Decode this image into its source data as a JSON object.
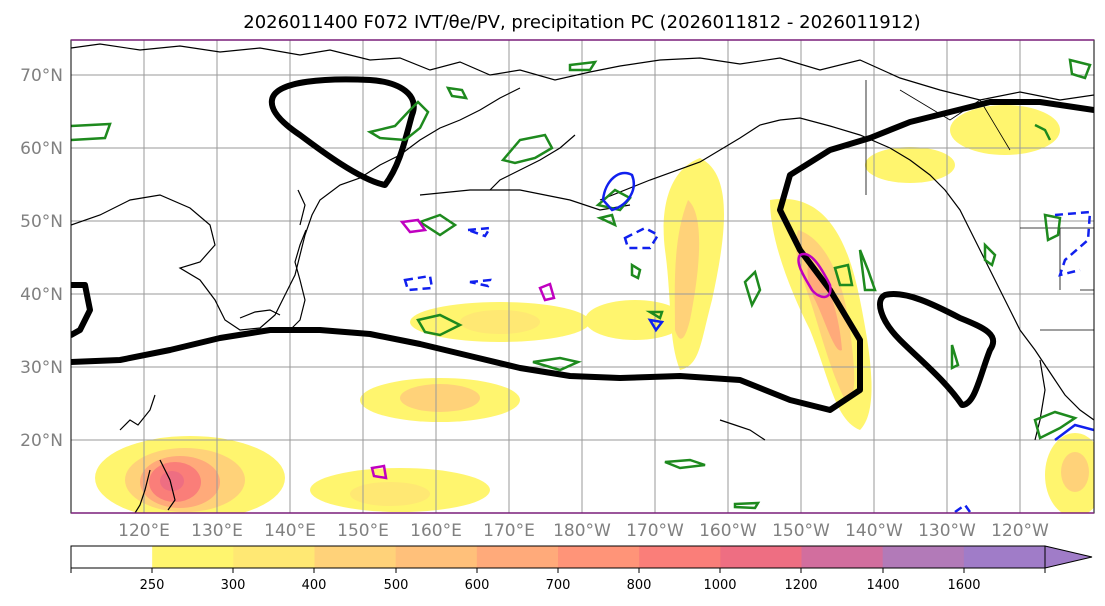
{
  "title": "2026011400 F072 IVT/θe/PV, precipitation PC (2026011812 - 2026011912)",
  "map": {
    "lat_labels": [
      "70°N",
      "60°N",
      "50°N",
      "40°N",
      "30°N",
      "20°N"
    ],
    "lon_labels": [
      "120°E",
      "130°E",
      "140°E",
      "150°E",
      "160°E",
      "170°E",
      "180°W",
      "170°W",
      "160°W",
      "150°W",
      "140°W",
      "130°W",
      "120°W"
    ],
    "lat_range": [
      10,
      75
    ],
    "lon_range": [
      110,
      250
    ],
    "grid": true
  },
  "colorbar": {
    "levels": [
      "250",
      "300",
      "400",
      "500",
      "600",
      "700",
      "800",
      "1000",
      "1200",
      "1400",
      "1600"
    ],
    "colors": [
      "#ffffff",
      "#fff56e",
      "#ffe873",
      "#ffd279",
      "#ffc07a",
      "#ffaa7a",
      "#ff9478",
      "#fa7e79",
      "#ee6e82",
      "#d26e9e",
      "#b27ab8",
      "#a07cc8"
    ],
    "extend": "max"
  },
  "legend_colors": {
    "pv": "#000000",
    "theta_e": "#1e8a1e",
    "pc_positive": "#1020ee",
    "pc_magenta": "#c000c0"
  }
}
